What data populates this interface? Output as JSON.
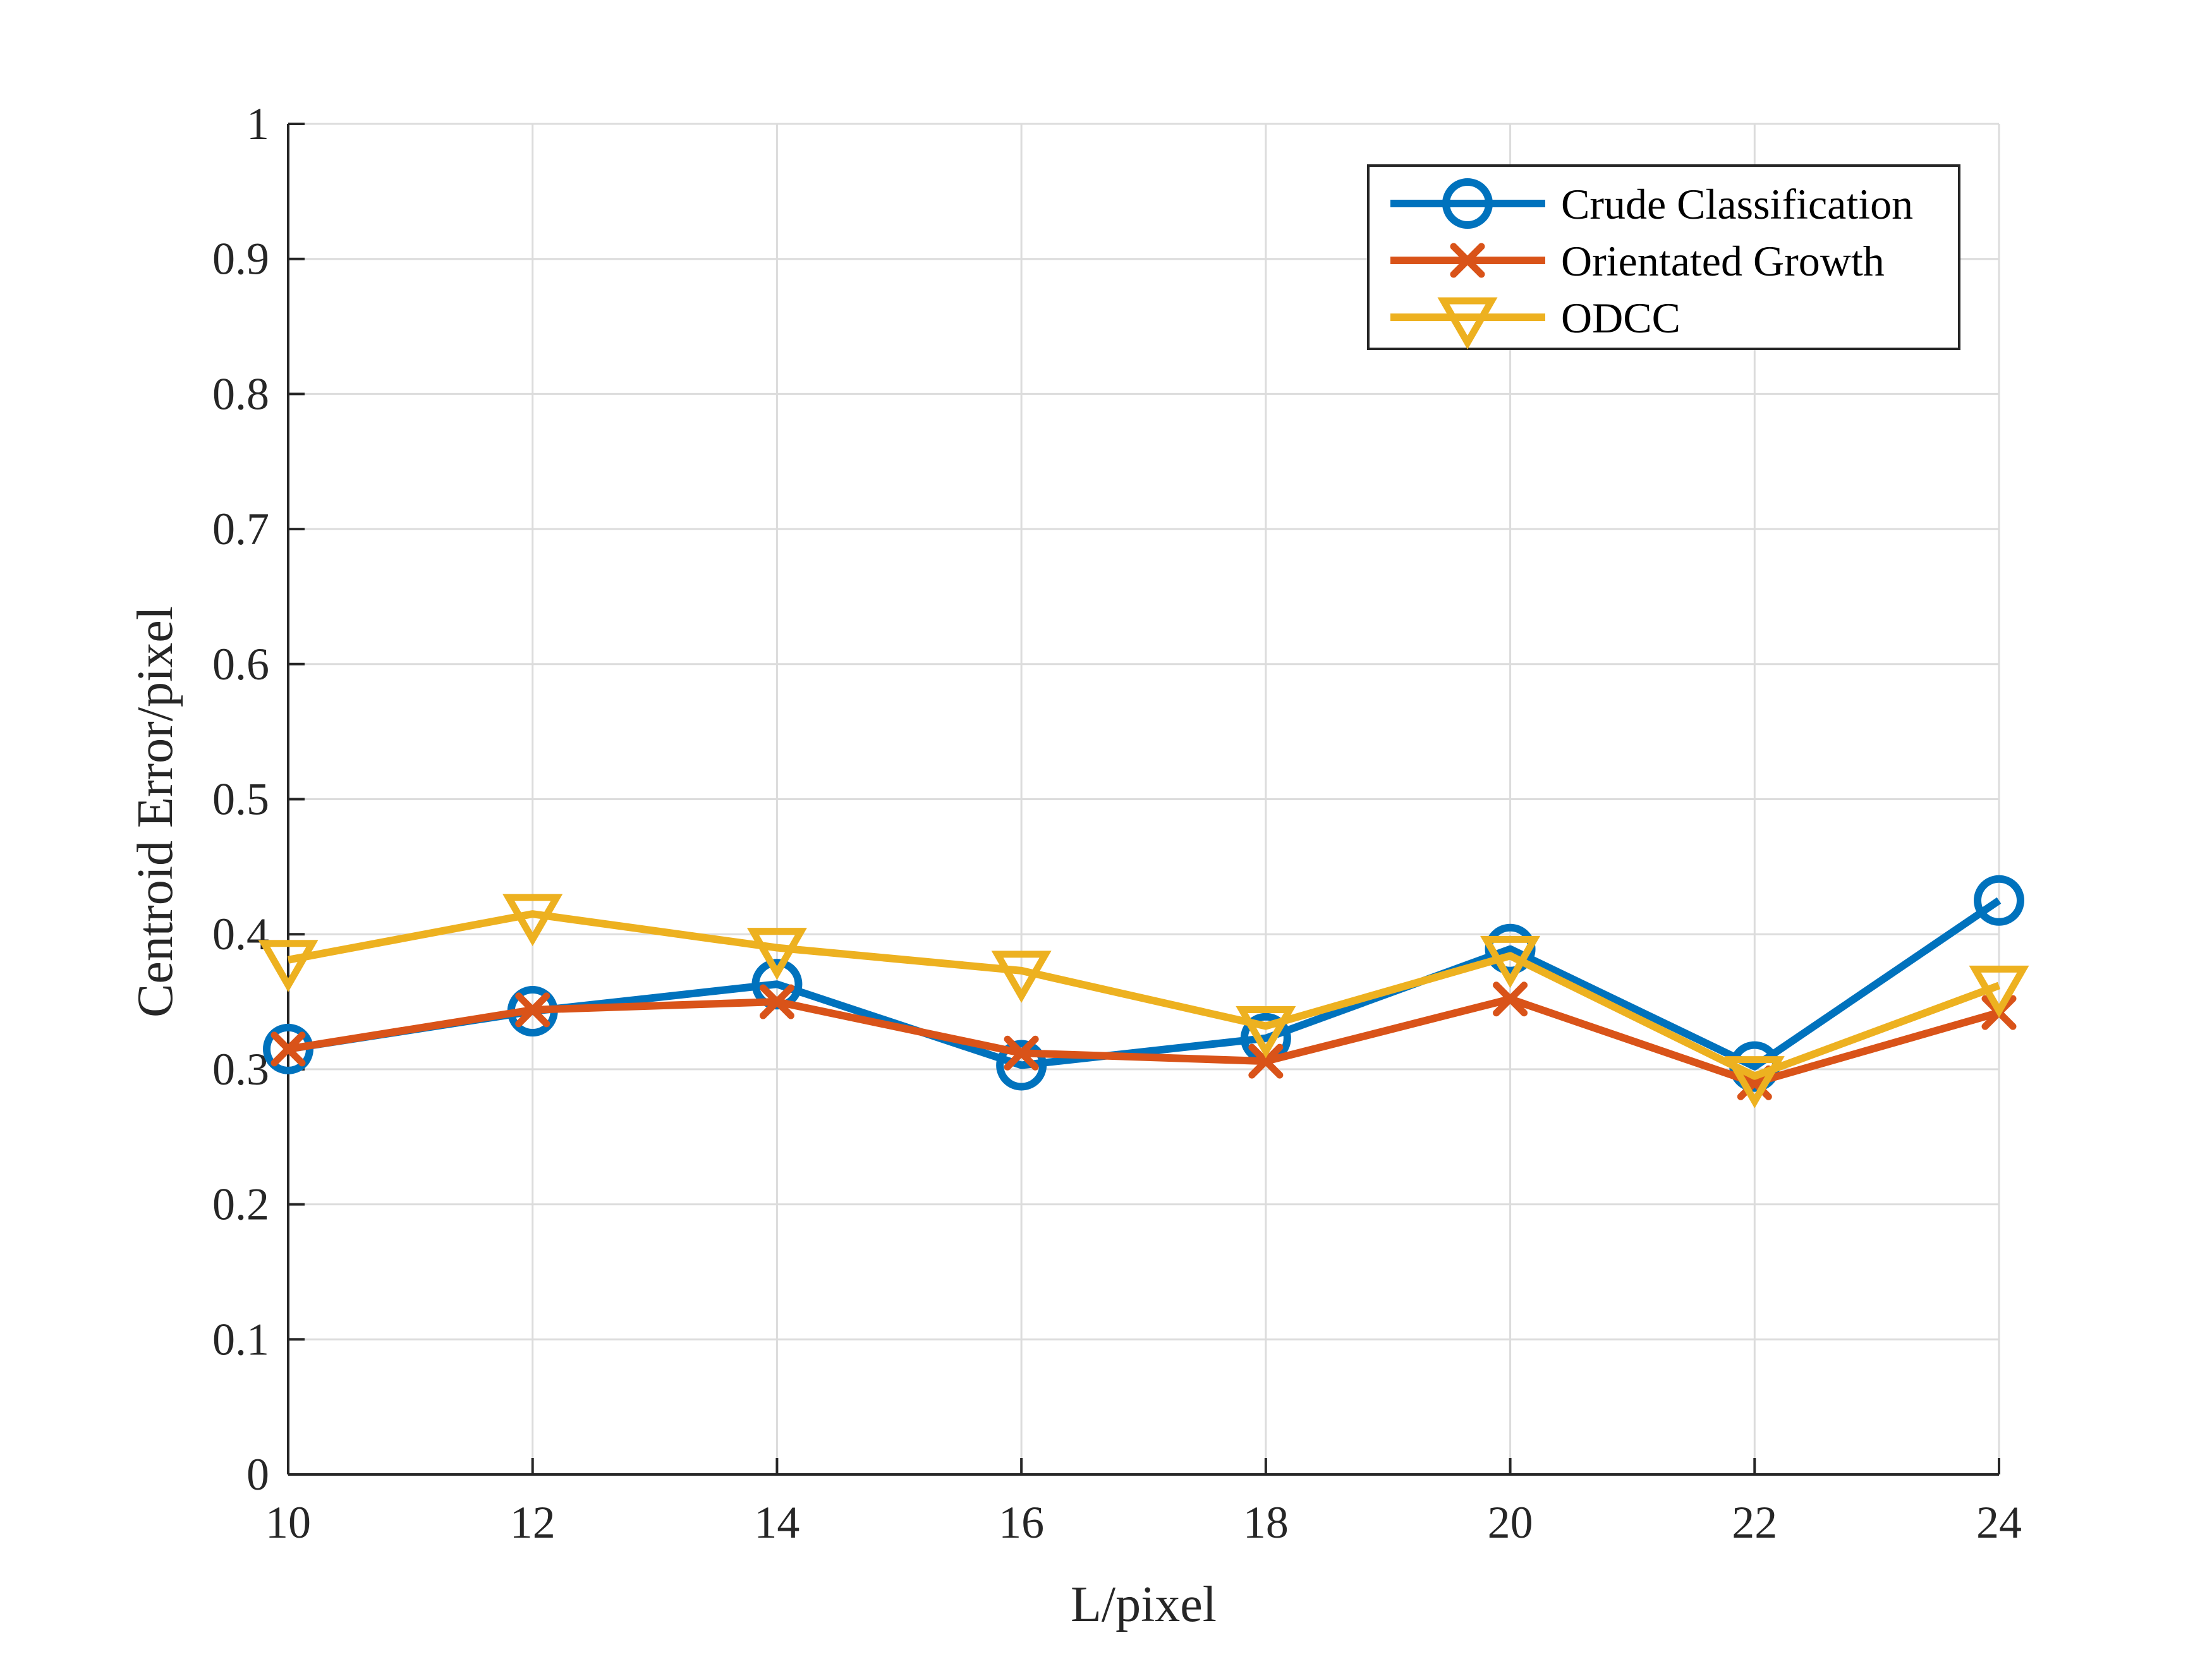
{
  "chart_data": {
    "type": "line",
    "title": "",
    "xlabel": "L/pixel",
    "ylabel": "Centroid Error/pixel",
    "x": [
      10,
      12,
      14,
      16,
      18,
      20,
      22,
      24
    ],
    "xlim": [
      10,
      24
    ],
    "ylim": [
      0,
      1
    ],
    "xticks": [
      10,
      12,
      14,
      16,
      18,
      20,
      22,
      24
    ],
    "xtick_labels": [
      "10",
      "12",
      "14",
      "16",
      "18",
      "20",
      "22",
      "24"
    ],
    "yticks": [
      0,
      0.1,
      0.2,
      0.3,
      0.4,
      0.5,
      0.6,
      0.7,
      0.8,
      0.9,
      1
    ],
    "ytick_labels": [
      "0",
      "0.1",
      "0.2",
      "0.3",
      "0.4",
      "0.5",
      "0.6",
      "0.7",
      "0.8",
      "0.9",
      "1"
    ],
    "grid": true,
    "legend_position": "top-right",
    "series": [
      {
        "name": "Crude Classification",
        "color": "#0072BD",
        "marker": "circle",
        "values": [
          0.315,
          0.343,
          0.363,
          0.303,
          0.323,
          0.389,
          0.302,
          0.425
        ]
      },
      {
        "name": "Orientated Growth",
        "color": "#D95319",
        "marker": "x",
        "values": [
          0.315,
          0.344,
          0.35,
          0.312,
          0.306,
          0.352,
          0.29,
          0.342
        ]
      },
      {
        "name": "ODCC",
        "color": "#EDB120",
        "marker": "triangle-down",
        "values": [
          0.381,
          0.415,
          0.39,
          0.373,
          0.332,
          0.384,
          0.295,
          0.362
        ]
      }
    ]
  }
}
